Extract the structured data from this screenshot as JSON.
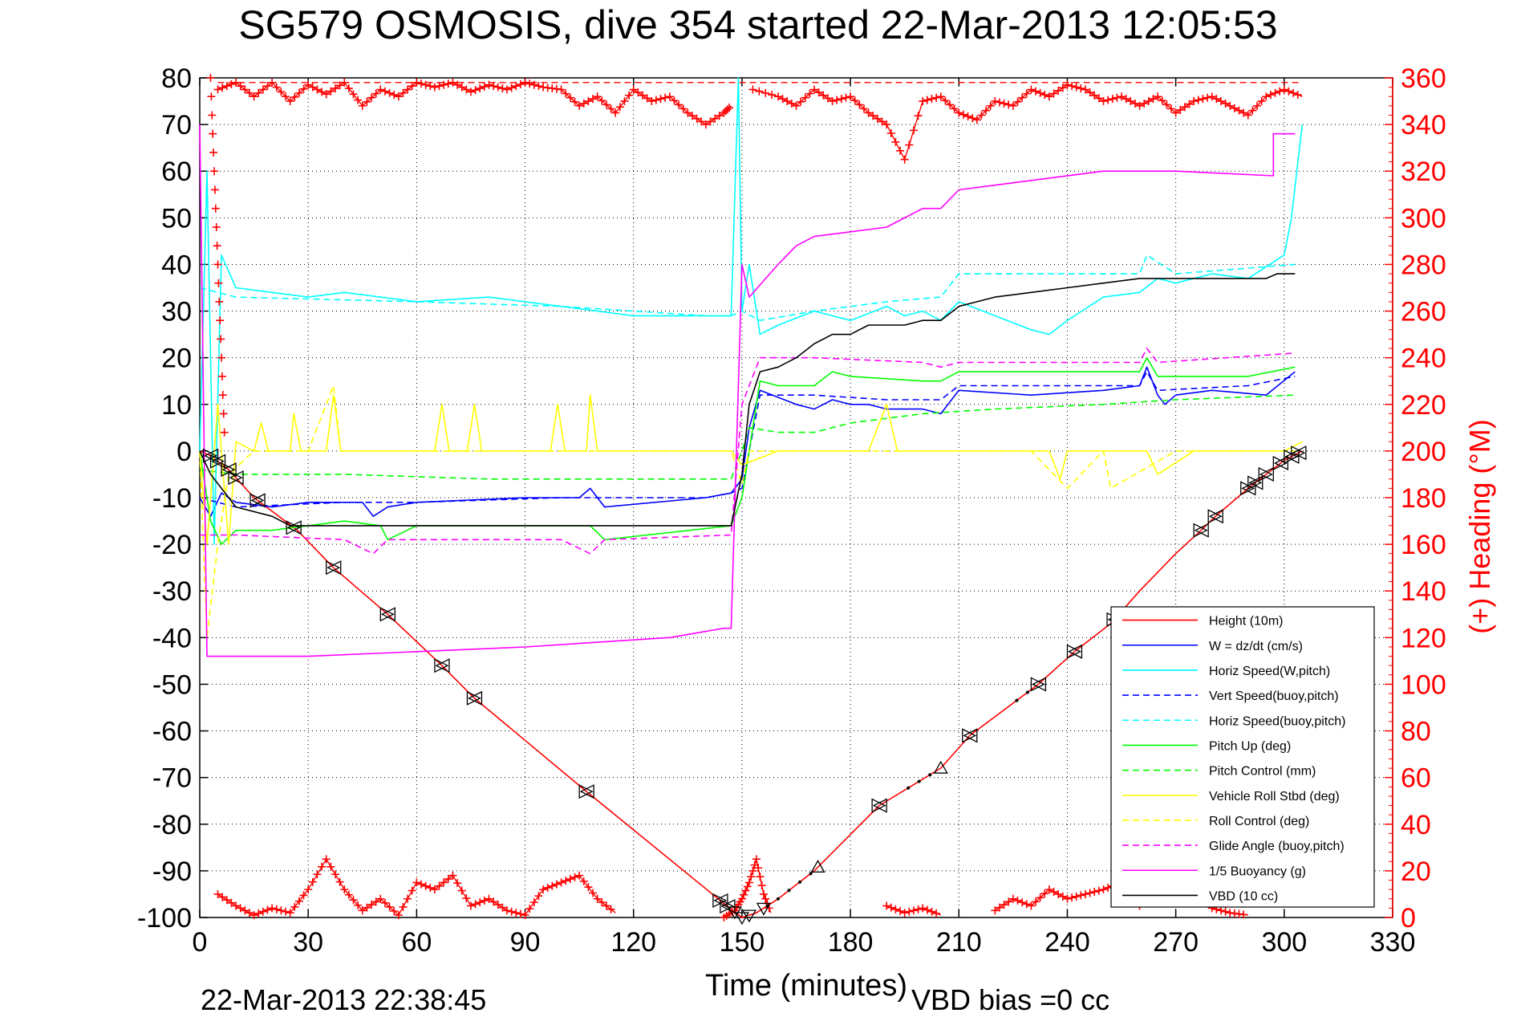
{
  "chart_data": {
    "type": "line",
    "title": "SG579 OSMOSIS, dive 354 started 22-Mar-2013 12:05:53",
    "xlabel": "Time (minutes)",
    "ylabel": "",
    "y2label": "(+) Heading (°M)",
    "xlim": [
      0,
      330
    ],
    "ylim": [
      -100,
      80
    ],
    "y2lim": [
      0,
      360
    ],
    "grid": true,
    "legend_position": "bottom-right",
    "footer_left": "22-Mar-2013 22:38:45",
    "footer_right": "VBD bias =0 cc",
    "xticks": [
      "0",
      "30",
      "60",
      "90",
      "120",
      "150",
      "180",
      "210",
      "240",
      "270",
      "300",
      "330"
    ],
    "yticks": [
      "-100",
      "-90",
      "-80",
      "-70",
      "-60",
      "-50",
      "-40",
      "-30",
      "-20",
      "-10",
      "0",
      "10",
      "20",
      "30",
      "40",
      "50",
      "60",
      "70",
      "80"
    ],
    "y2ticks": [
      "0",
      "20",
      "40",
      "60",
      "80",
      "100",
      "120",
      "140",
      "160",
      "180",
      "200",
      "220",
      "240",
      "260",
      "280",
      "300",
      "320",
      "340",
      "360"
    ],
    "colors": {
      "height": "#ff0000",
      "w": "#0000ff",
      "horiz_speed": "#00ffff",
      "pitch": "#00ff00",
      "roll": "#ffff00",
      "glide": "#ff00ff",
      "vbd": "#000000",
      "heading": "#ff0000"
    },
    "series": [
      {
        "name": "Height (10m)",
        "key": "height",
        "color": "#ff0000",
        "dash": "",
        "x": [
          0,
          3,
          8,
          15,
          27,
          37,
          52,
          67,
          76,
          107,
          145,
          150,
          154,
          160,
          170,
          188,
          205,
          213,
          232,
          242,
          252,
          260,
          270,
          277,
          281,
          290,
          295,
          300,
          305
        ],
        "y": [
          0,
          -1,
          -4,
          -10,
          -17,
          -25,
          -35,
          -46,
          -53,
          -73,
          -97,
          -100,
          -99,
          -96,
          -90,
          -76,
          -68,
          -61,
          -50,
          -43,
          -37,
          -30,
          -22,
          -17,
          -14,
          -8,
          -5,
          -2,
          0
        ]
      },
      {
        "name": "W = dz/dt (cm/s)",
        "key": "w",
        "color": "#0000ff",
        "dash": "",
        "x": [
          0,
          3,
          6,
          10,
          20,
          30,
          45,
          48,
          52,
          60,
          90,
          105,
          108,
          112,
          140,
          147,
          150,
          152,
          155,
          165,
          170,
          175,
          180,
          185,
          190,
          195,
          200,
          205,
          210,
          230,
          250,
          260,
          262,
          265,
          267,
          270,
          280,
          295,
          303
        ],
        "y": [
          -10,
          -14,
          -9,
          -11,
          -12,
          -11,
          -11,
          -14,
          -12,
          -11,
          -10,
          -10,
          -8,
          -12,
          -10,
          -9,
          -6,
          5,
          13,
          10,
          9,
          11,
          10,
          10,
          9,
          9,
          9,
          8,
          13,
          12,
          13,
          14,
          18,
          12,
          10,
          12,
          13,
          12,
          17
        ]
      },
      {
        "name": "Horiz Speed(W,pitch)",
        "key": "hspeed",
        "color": "#00ffff",
        "dash": "",
        "x": [
          0,
          2,
          4,
          6,
          10,
          20,
          30,
          40,
          60,
          80,
          100,
          120,
          140,
          147,
          149,
          150,
          152,
          155,
          160,
          170,
          180,
          190,
          195,
          200,
          205,
          210,
          220,
          230,
          235,
          240,
          250,
          260,
          265,
          270,
          280,
          290,
          300,
          302,
          305
        ],
        "y": [
          0,
          60,
          -20,
          42,
          35,
          34,
          33,
          34,
          32,
          33,
          31,
          29,
          29,
          29,
          80,
          30,
          40,
          25,
          27,
          30,
          28,
          31,
          29,
          30,
          28,
          32,
          29,
          26,
          25,
          28,
          33,
          34,
          37,
          36,
          38,
          37,
          42,
          50,
          70
        ]
      },
      {
        "name": "Vert Speed(buoy,pitch)",
        "key": "vspeed",
        "color": "#0000ff",
        "dash": "8,5",
        "x": [
          0,
          10,
          40,
          60,
          100,
          140,
          147,
          150,
          155,
          170,
          190,
          205,
          210,
          260,
          262,
          265,
          290,
          303
        ],
        "y": [
          -10,
          -12,
          -11,
          -11,
          -10,
          -10,
          -9,
          -8,
          12,
          12,
          11,
          11,
          14,
          14,
          17,
          13,
          14,
          16
        ]
      },
      {
        "name": "Horiz Speed(buoy,pitch)",
        "key": "hspeedb",
        "color": "#00ffff",
        "dash": "8,5",
        "x": [
          0,
          10,
          60,
          100,
          140,
          147,
          150,
          155,
          170,
          180,
          190,
          205,
          210,
          260,
          262,
          270,
          303
        ],
        "y": [
          35,
          33,
          32,
          31,
          29,
          29,
          30,
          28,
          30,
          31,
          32,
          33,
          38,
          38,
          42,
          38,
          40
        ]
      },
      {
        "name": "Pitch Up (deg)",
        "key": "pitch",
        "color": "#00ff00",
        "dash": "",
        "x": [
          0,
          3,
          6,
          10,
          20,
          30,
          40,
          50,
          52,
          60,
          100,
          108,
          112,
          147,
          150,
          155,
          160,
          170,
          175,
          180,
          200,
          205,
          210,
          260,
          262,
          265,
          290,
          303
        ],
        "y": [
          0,
          -15,
          -20,
          -17,
          -17,
          -16,
          -15,
          -16,
          -19,
          -16,
          -16,
          -16,
          -19,
          -16,
          -10,
          15,
          14,
          14,
          17,
          16,
          15,
          15,
          17,
          17,
          20,
          16,
          16,
          18
        ]
      },
      {
        "name": "Pitch Control (mm)",
        "key": "pitchc",
        "color": "#00ff00",
        "dash": "8,5",
        "x": [
          0,
          10,
          40,
          80,
          147,
          150,
          152,
          160,
          170,
          180,
          200,
          220,
          250,
          270,
          303
        ],
        "y": [
          -4,
          -5,
          -5,
          -6,
          -6,
          0,
          5,
          4,
          4,
          6,
          8,
          9,
          10,
          11,
          12
        ]
      },
      {
        "name": "Vehicle Roll Stbd (deg)",
        "key": "roll",
        "color": "#ffff00",
        "dash": "",
        "x": [
          0,
          2,
          5,
          8,
          10,
          15,
          17,
          19,
          25,
          26,
          28,
          35,
          37,
          39,
          65,
          67,
          69,
          74,
          76,
          78,
          85,
          97,
          99,
          101,
          107,
          108,
          110,
          147,
          150,
          160,
          185,
          190,
          193,
          200,
          215,
          220,
          235,
          238,
          240,
          262,
          265,
          275,
          300,
          305
        ],
        "y": [
          0,
          -20,
          10,
          -20,
          2,
          0,
          6,
          0,
          0,
          8,
          0,
          0,
          12,
          0,
          0,
          10,
          0,
          0,
          10,
          0,
          0,
          0,
          10,
          0,
          0,
          12,
          0,
          0,
          -3,
          0,
          0,
          10,
          0,
          0,
          0,
          0,
          0,
          -6,
          0,
          0,
          -5,
          0,
          0,
          2
        ]
      },
      {
        "name": "Roll Control (deg)",
        "key": "rollc",
        "color": "#ffff00",
        "dash": "8,5",
        "x": [
          0,
          2,
          5,
          8,
          15,
          30,
          37,
          39,
          60,
          100,
          147,
          150,
          152,
          160,
          200,
          230,
          240,
          250,
          252,
          270,
          303
        ],
        "y": [
          0,
          -40,
          -20,
          -5,
          0,
          0,
          14,
          0,
          0,
          0,
          0,
          -7,
          0,
          0,
          0,
          0,
          -8,
          0,
          -8,
          0,
          0
        ]
      },
      {
        "name": "Glide Angle (buoy,pitch)",
        "key": "glide",
        "color": "#ff00ff",
        "dash": "8,5",
        "x": [
          0,
          10,
          40,
          48,
          52,
          60,
          100,
          108,
          112,
          147,
          150,
          155,
          170,
          200,
          205,
          210,
          260,
          262,
          265,
          303
        ],
        "y": [
          -18,
          -18,
          -19,
          -22,
          -19,
          -19,
          -19,
          -22,
          -19,
          -18,
          10,
          20,
          20,
          19,
          18,
          19,
          19,
          22,
          19,
          21
        ]
      },
      {
        "name": "1/5 Buoyancy (g)",
        "key": "buoy",
        "color": "#ff00ff",
        "dash": "",
        "x": [
          0,
          2,
          5,
          30,
          60,
          90,
          110,
          130,
          145,
          147,
          150,
          152,
          160,
          165,
          170,
          180,
          190,
          200,
          205,
          210,
          220,
          230,
          250,
          270,
          297,
          297,
          303
        ],
        "y": [
          70,
          -44,
          -44,
          -44,
          -43,
          -42,
          -41,
          -40,
          -38,
          -38,
          40,
          33,
          40,
          44,
          46,
          47,
          48,
          52,
          52,
          56,
          57,
          58,
          60,
          60,
          59,
          68,
          68
        ]
      },
      {
        "name": "VBD (10 cc)",
        "key": "vbd",
        "color": "#000000",
        "dash": "",
        "x": [
          0,
          3,
          10,
          20,
          25,
          145,
          147,
          150,
          152,
          155,
          160,
          165,
          170,
          175,
          180,
          185,
          190,
          195,
          200,
          205,
          210,
          215,
          220,
          230,
          240,
          250,
          260,
          270,
          280,
          295,
          298,
          303
        ],
        "y": [
          0,
          -5,
          -12,
          -14,
          -16,
          -16,
          -16,
          -5,
          10,
          17,
          18,
          20,
          23,
          25,
          25,
          27,
          27,
          27,
          28,
          28,
          31,
          32,
          33,
          34,
          35,
          36,
          37,
          37,
          37,
          37,
          38,
          38
        ]
      }
    ],
    "heading": {
      "name": "(+) Heading",
      "color": "#ff0000",
      "top_segments": [
        {
          "x": [
            5,
            10,
            15,
            20,
            25,
            30,
            35,
            40,
            45,
            50,
            55,
            60,
            65,
            70,
            75,
            80,
            85,
            90,
            95,
            100,
            105,
            110,
            115,
            120,
            125,
            130,
            135,
            140,
            145,
            147
          ],
          "y": [
            355,
            358,
            352,
            358,
            350,
            357,
            353,
            358,
            348,
            355,
            352,
            358,
            356,
            358,
            354,
            357,
            355,
            358,
            356,
            355,
            348,
            352,
            345,
            355,
            350,
            352,
            345,
            340,
            345,
            348
          ]
        },
        {
          "x": [
            153,
            160,
            165,
            170,
            175,
            180,
            185,
            190,
            195,
            200,
            205,
            210,
            215,
            220,
            225,
            230,
            235,
            240,
            245,
            250,
            255,
            260,
            265,
            270,
            275,
            280,
            285,
            290,
            295,
            300,
            305
          ],
          "y": [
            355,
            352,
            348,
            355,
            350,
            352,
            345,
            340,
            325,
            350,
            352,
            345,
            342,
            350,
            348,
            355,
            352,
            357,
            355,
            350,
            352,
            348,
            352,
            345,
            350,
            352,
            348,
            344,
            352,
            355,
            352
          ]
        }
      ],
      "bottom_segments": [
        {
          "x": [
            5,
            10,
            15,
            20,
            25,
            30,
            35,
            40,
            45,
            50,
            55,
            60,
            65,
            70,
            75,
            80,
            85,
            90,
            95,
            100,
            105,
            110,
            115
          ],
          "y": [
            10,
            5,
            1,
            4,
            2,
            12,
            25,
            12,
            3,
            8,
            1,
            15,
            12,
            18,
            5,
            8,
            3,
            1,
            12,
            15,
            18,
            8,
            2
          ]
        },
        {
          "x": [
            145,
            148,
            150,
            152,
            154,
            156,
            158
          ],
          "y": [
            0,
            3,
            8,
            15,
            25,
            10,
            2
          ]
        },
        {
          "x": [
            190,
            195,
            200,
            205
          ],
          "y": [
            5,
            2,
            4,
            1
          ]
        },
        {
          "x": [
            220,
            225,
            230,
            235,
            240,
            245,
            250,
            255,
            260,
            265,
            270,
            275,
            280,
            285,
            290
          ],
          "y": [
            3,
            8,
            5,
            12,
            8,
            10,
            12,
            15,
            5,
            10,
            14,
            12,
            4,
            2,
            1
          ]
        }
      ],
      "reference": 358
    },
    "markers": {
      "down_pairs_x": [
        3,
        5,
        8,
        10,
        16,
        26,
        37,
        52,
        67,
        76,
        107,
        144,
        146
      ],
      "up_pairs_x": [
        188,
        213,
        232,
        242,
        253,
        277,
        281,
        290,
        292,
        295,
        299,
        302,
        304
      ],
      "up_triangles_x": [
        171,
        205
      ],
      "bottom_x": [
        148,
        150,
        152,
        156
      ]
    }
  }
}
